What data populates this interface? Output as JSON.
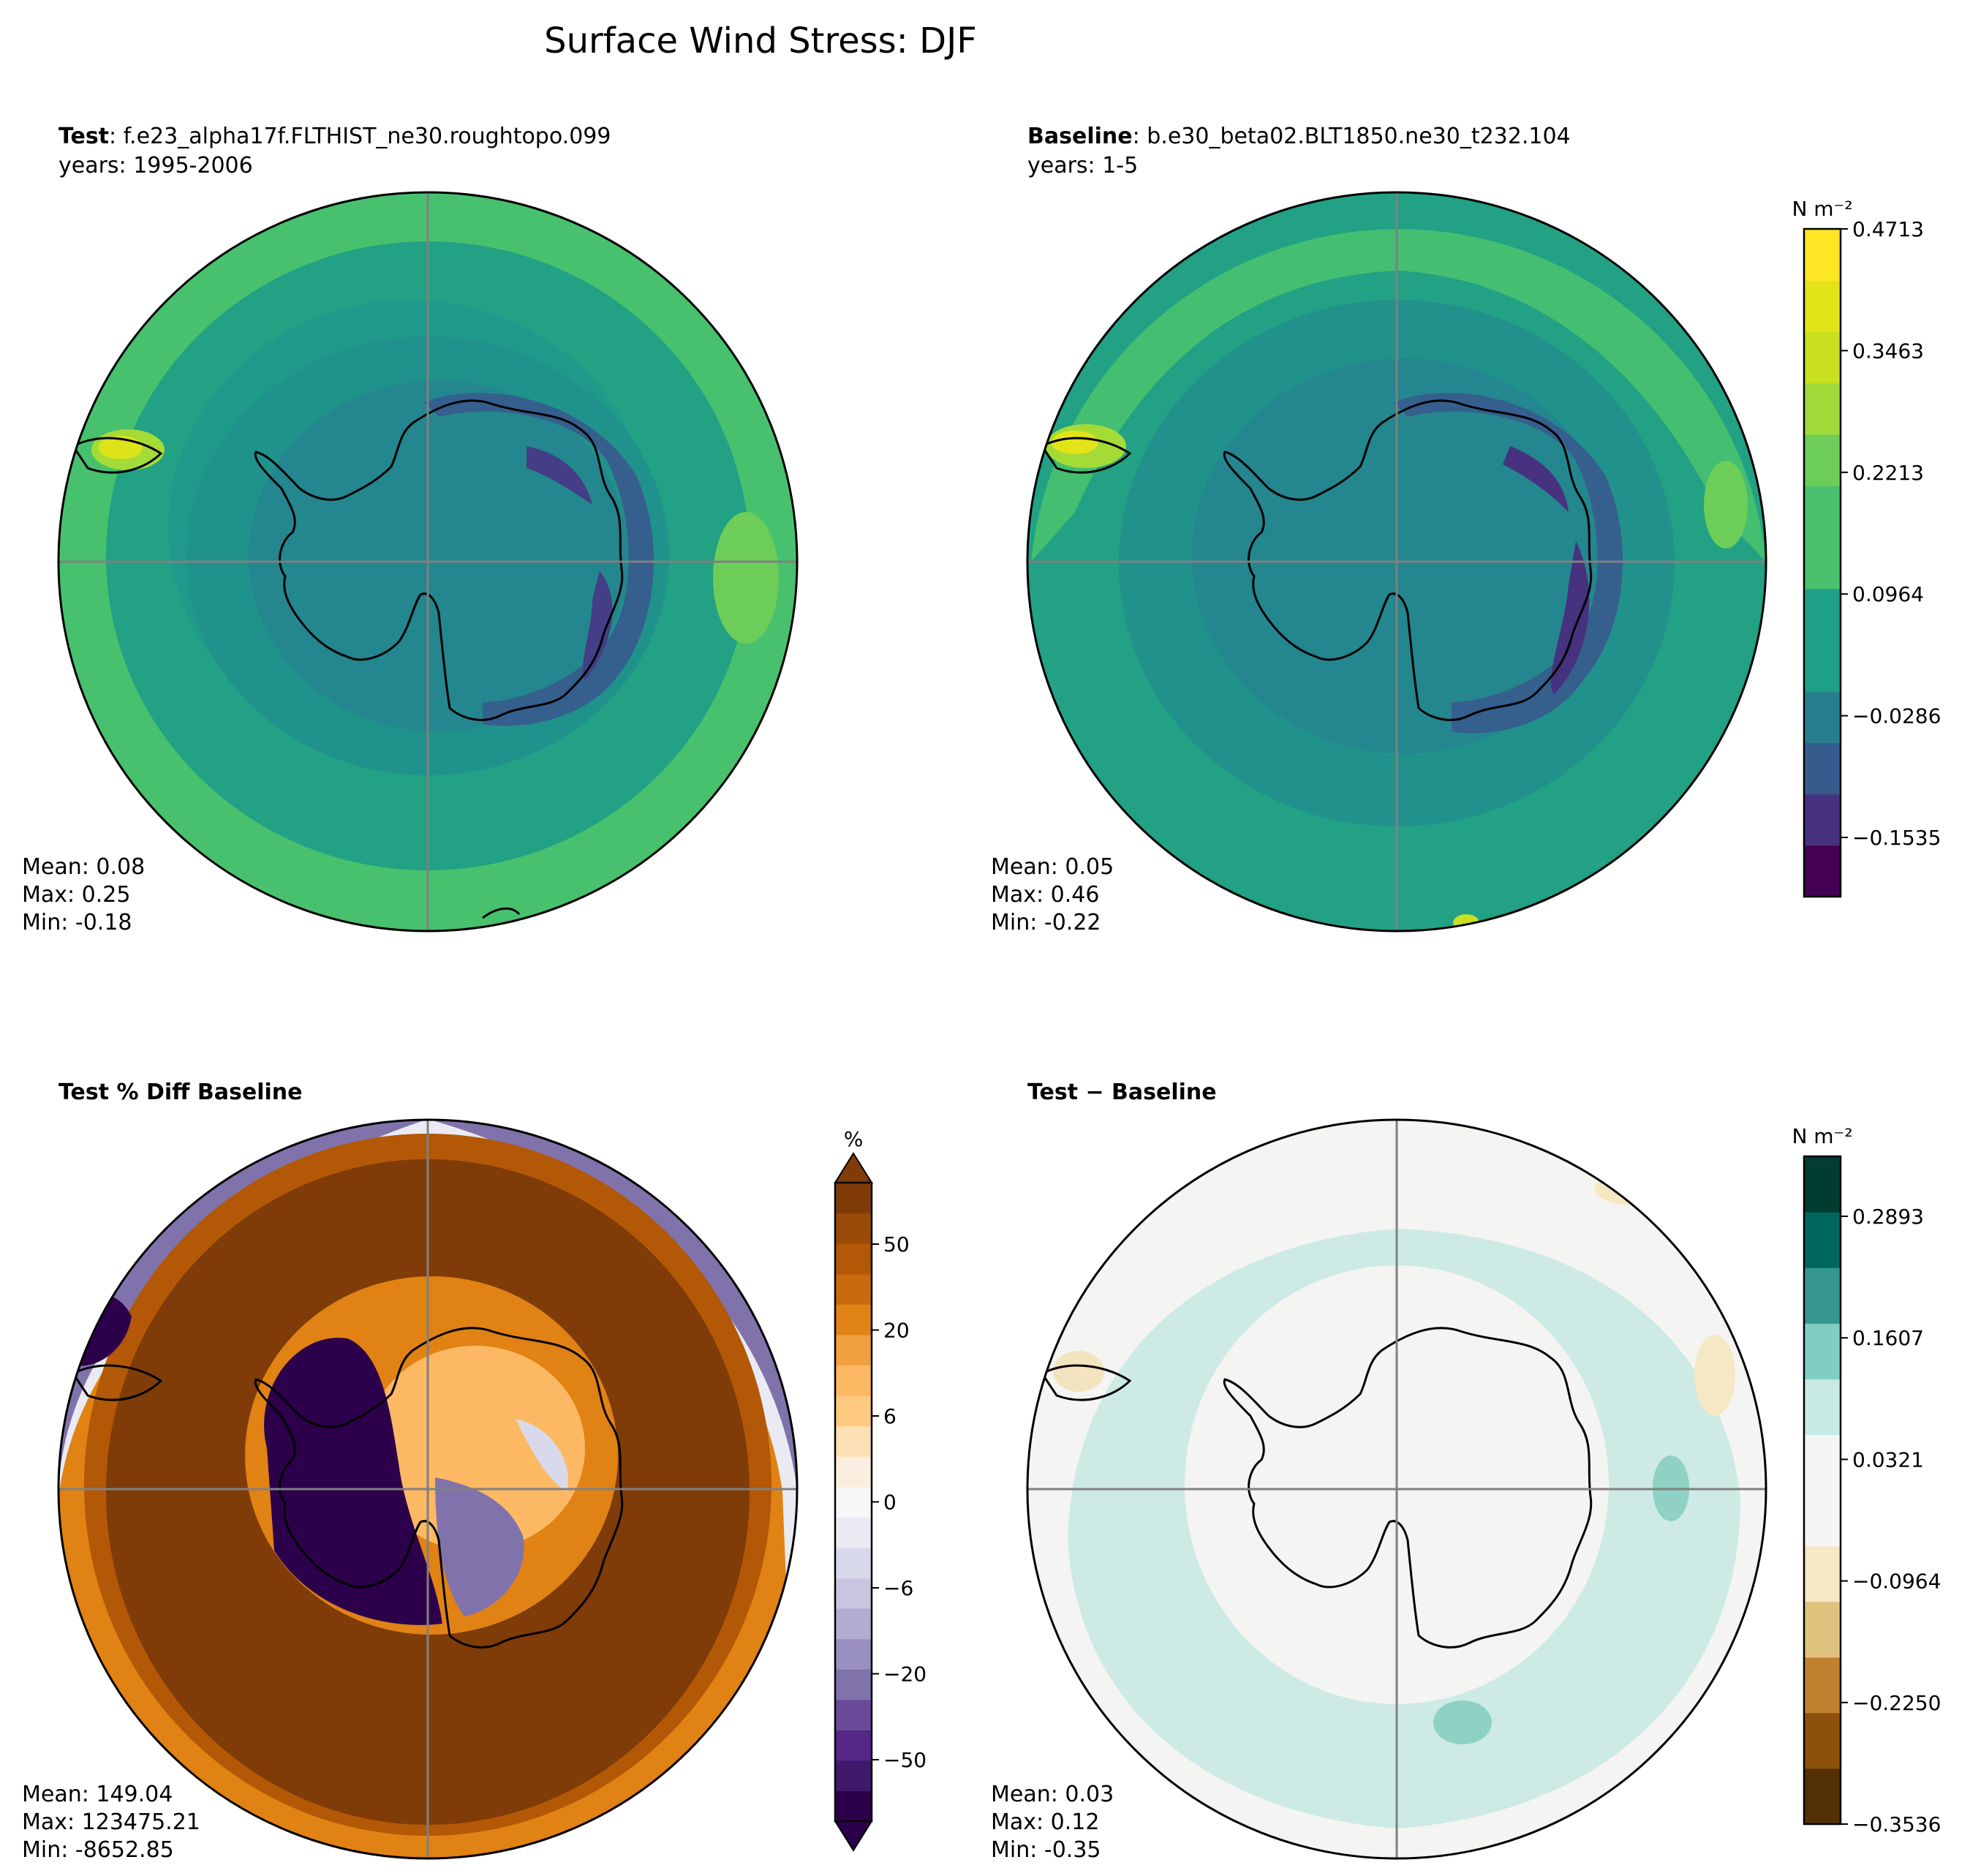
{
  "figure": {
    "title": "Surface Wind Stress: DJF"
  },
  "panels": [
    {
      "id": "test",
      "label_bold": "Test",
      "label_rest": ": f.e23_alpha17f.FLTHIST_ne30.roughtopo.099",
      "line2": "years: 1995-2006",
      "stats": {
        "mean": "Mean:  0.08",
        "max": "Max:  0.25",
        "min": "Min: -0.18"
      },
      "colormap": "viridis"
    },
    {
      "id": "baseline",
      "label_bold": "Baseline",
      "label_rest": ": b.e30_beta02.BLT1850.ne30_t232.104",
      "line2": "years: 1-5",
      "stats": {
        "mean": "Mean:  0.05",
        "max": "Max:  0.46",
        "min": "Min: -0.22"
      },
      "colormap": "viridis"
    },
    {
      "id": "pctdiff",
      "label_bold": "Test % Diff Baseline",
      "label_rest": "",
      "line2": "",
      "stats": {
        "mean": "Mean: 149.04",
        "max": "Max: 123475.21",
        "min": "Min: -8652.85"
      },
      "colormap": "PuOr_r"
    },
    {
      "id": "diff",
      "label_bold": "Test − Baseline",
      "label_rest": "",
      "line2": "",
      "stats": {
        "mean": "Mean:  0.03",
        "max": "Max:  0.12",
        "min": "Min: -0.35"
      },
      "colormap": "BrBG"
    }
  ],
  "colorbars": [
    {
      "id": "cb-main",
      "unit": "N m⁻²",
      "ticks": [
        "0.4713",
        "0.3463",
        "0.2213",
        "0.0964",
        "−0.0286",
        "−0.1535"
      ],
      "colors": [
        "#440154",
        "#46327e",
        "#365c8d",
        "#277f8e",
        "#1fa187",
        "#1fa187",
        "#4ac16d",
        "#4ac16d",
        "#6dcd59",
        "#a0da39",
        "#c8e020",
        "#e3e418",
        "#fde725"
      ]
    },
    {
      "id": "cb-pct",
      "unit": "%",
      "ticks": [
        "50",
        "20",
        "6",
        "0",
        "−6",
        "−20",
        "−50"
      ],
      "colors": [
        "#2d004b",
        "#3f1a6b",
        "#542788",
        "#6a4b9a",
        "#8073ac",
        "#9a8fc1",
        "#b2abd2",
        "#c9c5e1",
        "#d8daeb",
        "#eaeaf3",
        "#f7f7f7",
        "#fbeee0",
        "#fee0b6",
        "#fdc97e",
        "#fdb863",
        "#f0a03e",
        "#e08214",
        "#c96b0c",
        "#b35806",
        "#9a4b07",
        "#7f3b08"
      ],
      "under_color": "#2d004b",
      "over_color": "#7f3b08"
    },
    {
      "id": "cb-diff",
      "unit": "N m⁻²",
      "ticks": [
        "0.2893",
        "0.1607",
        "0.0321",
        "−0.0964",
        "−0.2250",
        "−0.3536"
      ],
      "colors": [
        "#543005",
        "#8c510a",
        "#bf812d",
        "#dfc27d",
        "#f6e8c3",
        "#f5f5f5",
        "#f5f5f5",
        "#c7eae5",
        "#80cdc1",
        "#35978f",
        "#01665e",
        "#003c30"
      ]
    }
  ]
}
